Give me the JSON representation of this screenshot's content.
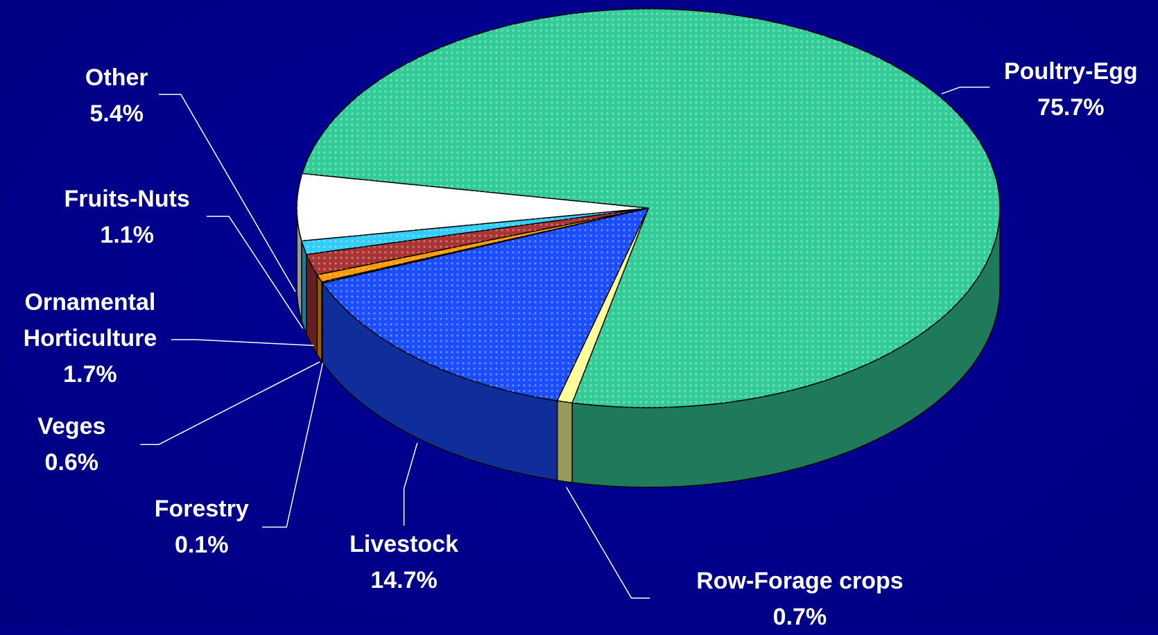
{
  "chart_data": {
    "type": "pie",
    "categories": [
      "Poultry-Egg",
      "Row-Forage crops",
      "Livestock",
      "Forestry",
      "Veges",
      "Ornamental Horticulture",
      "Fruits-Nuts",
      "Other"
    ],
    "values": [
      75.7,
      0.7,
      14.7,
      0.1,
      0.6,
      1.7,
      1.1,
      5.4
    ],
    "value_labels": [
      "75.7%",
      "0.7%",
      "14.7%",
      "0.1%",
      "0.6%",
      "1.7%",
      "1.1%",
      "5.4%"
    ],
    "colors": [
      "#33cc99",
      "#ffff99",
      "#1a4dff",
      "#336633",
      "#ff9900",
      "#aa3333",
      "#33ccff",
      "#ffffff"
    ]
  }
}
